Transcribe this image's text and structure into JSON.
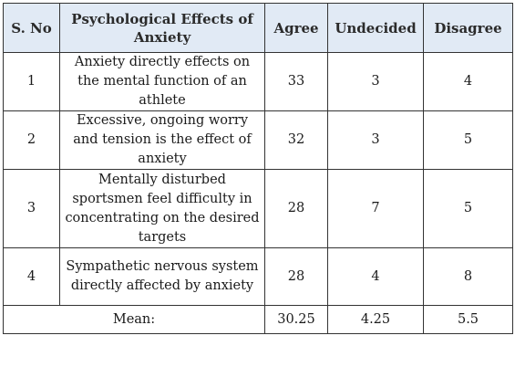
{
  "table": {
    "headers": {
      "sno": "S. No",
      "effect": "Psychological Effects of Anxiety",
      "agree": "Agree",
      "undecided": "Undecided",
      "disagree": "Disagree"
    },
    "rows": [
      {
        "sno": "1",
        "effect": "Anxiety directly effects on the mental function of an athlete",
        "agree": "33",
        "undecided": "3",
        "disagree": "4"
      },
      {
        "sno": "2",
        "effect": "Excessive, ongoing worry and tension is the effect of anxiety",
        "agree": "32",
        "undecided": "3",
        "disagree": "5"
      },
      {
        "sno": "3",
        "effect": "Mentally disturbed sportsmen feel difficulty in concentrating on the desired targets",
        "agree": "28",
        "undecided": "7",
        "disagree": "5"
      },
      {
        "sno": "4",
        "effect": "Sympathetic nervous system directly affected by anxiety",
        "agree": "28",
        "undecided": "4",
        "disagree": "8"
      }
    ],
    "footer": {
      "label": "Mean:",
      "agree": "30.25",
      "undecided": "4.25",
      "disagree": "5.5"
    }
  },
  "colors": {
    "header_background": "#e1eaf5",
    "border": "#333333"
  }
}
